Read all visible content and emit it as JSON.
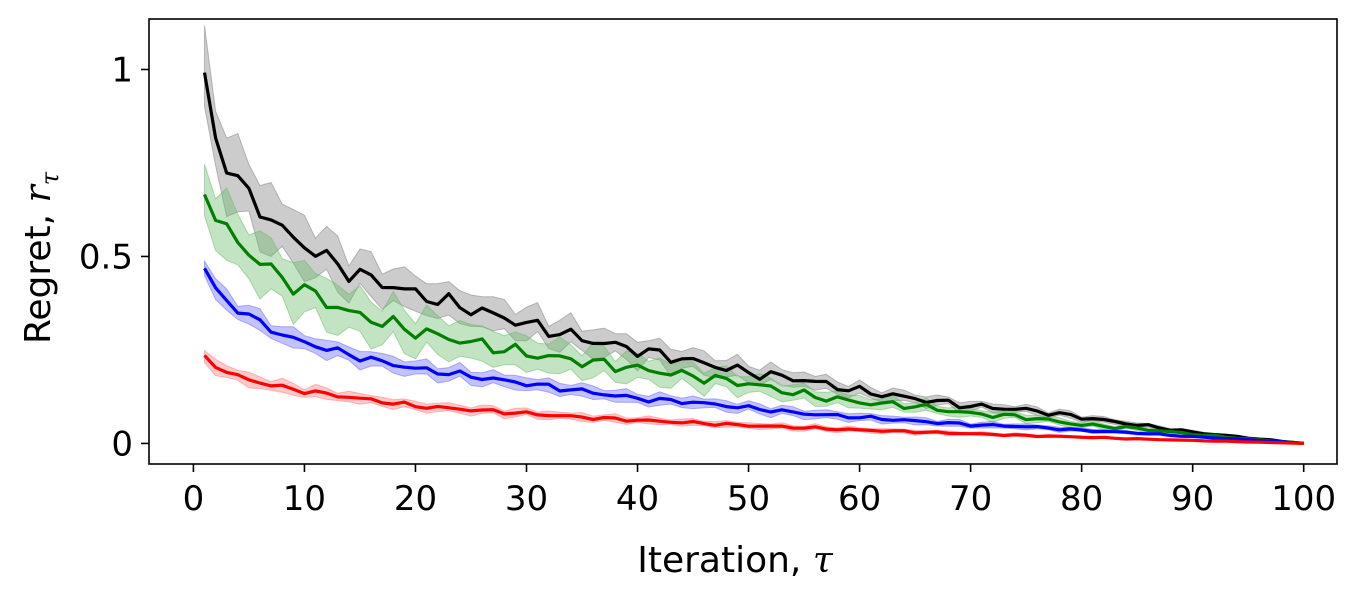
{
  "chart_data": {
    "type": "line",
    "xlabel_text": "Iteration, ",
    "xlabel_symbol": "τ",
    "ylabel_text": "Regret, ",
    "ylabel_symbol": "r",
    "ylabel_subscript": "τ",
    "xlim": [
      -4,
      103
    ],
    "ylim": [
      -0.055,
      1.135
    ],
    "x_ticks": [
      0,
      10,
      20,
      30,
      40,
      50,
      60,
      70,
      80,
      90,
      100
    ],
    "y_ticks": [
      0,
      0.5,
      1
    ],
    "y_tick_labels": [
      "0",
      "0.5",
      "1"
    ],
    "grid": false,
    "series": [
      {
        "color": "#000000",
        "band_color": "#808080",
        "band_halfwidth": [
          0.1,
          0.05,
          0.015,
          0.0
        ],
        "anchors": [
          [
            1,
            0.98
          ],
          [
            2,
            0.81
          ],
          [
            3,
            0.75
          ],
          [
            5,
            0.66
          ],
          [
            8,
            0.57
          ],
          [
            10,
            0.53
          ],
          [
            14,
            0.46
          ],
          [
            20,
            0.4
          ],
          [
            25,
            0.36
          ],
          [
            30,
            0.32
          ],
          [
            35,
            0.28
          ],
          [
            40,
            0.25
          ],
          [
            45,
            0.22
          ],
          [
            50,
            0.19
          ],
          [
            55,
            0.17
          ],
          [
            60,
            0.14
          ],
          [
            65,
            0.12
          ],
          [
            70,
            0.1
          ],
          [
            75,
            0.09
          ],
          [
            80,
            0.07
          ],
          [
            85,
            0.05
          ],
          [
            90,
            0.03
          ],
          [
            95,
            0.015
          ],
          [
            100,
            0.0
          ]
        ],
        "noise": 0.02
      },
      {
        "color": "#007f00",
        "band_color": "#66bb66",
        "band_halfwidth": [
          0.08,
          0.055,
          0.015,
          0.0
        ],
        "anchors": [
          [
            1,
            0.69
          ],
          [
            2,
            0.6
          ],
          [
            3,
            0.57
          ],
          [
            5,
            0.51
          ],
          [
            8,
            0.44
          ],
          [
            10,
            0.41
          ],
          [
            14,
            0.35
          ],
          [
            20,
            0.3
          ],
          [
            25,
            0.27
          ],
          [
            30,
            0.24
          ],
          [
            35,
            0.22
          ],
          [
            40,
            0.2
          ],
          [
            45,
            0.18
          ],
          [
            50,
            0.16
          ],
          [
            55,
            0.13
          ],
          [
            60,
            0.11
          ],
          [
            65,
            0.1
          ],
          [
            70,
            0.08
          ],
          [
            75,
            0.07
          ],
          [
            80,
            0.05
          ],
          [
            85,
            0.04
          ],
          [
            90,
            0.025
          ],
          [
            95,
            0.012
          ],
          [
            100,
            0.0
          ]
        ],
        "noise": 0.018
      },
      {
        "color": "#0000ff",
        "band_color": "#6666ff",
        "band_halfwidth": [
          0.025,
          0.02,
          0.01,
          0.0
        ],
        "anchors": [
          [
            1,
            0.47
          ],
          [
            2,
            0.41
          ],
          [
            3,
            0.38
          ],
          [
            5,
            0.34
          ],
          [
            8,
            0.29
          ],
          [
            10,
            0.27
          ],
          [
            15,
            0.23
          ],
          [
            20,
            0.2
          ],
          [
            25,
            0.18
          ],
          [
            30,
            0.16
          ],
          [
            35,
            0.14
          ],
          [
            40,
            0.12
          ],
          [
            45,
            0.11
          ],
          [
            50,
            0.095
          ],
          [
            55,
            0.08
          ],
          [
            60,
            0.07
          ],
          [
            65,
            0.06
          ],
          [
            70,
            0.05
          ],
          [
            75,
            0.045
          ],
          [
            80,
            0.035
          ],
          [
            85,
            0.028
          ],
          [
            90,
            0.018
          ],
          [
            95,
            0.01
          ],
          [
            100,
            0.0
          ]
        ],
        "noise": 0.008
      },
      {
        "color": "#ff0000",
        "band_color": "#ff7777",
        "band_halfwidth": [
          0.018,
          0.012,
          0.006,
          0.0
        ],
        "anchors": [
          [
            1,
            0.23
          ],
          [
            2,
            0.21
          ],
          [
            3,
            0.19
          ],
          [
            5,
            0.17
          ],
          [
            8,
            0.15
          ],
          [
            10,
            0.14
          ],
          [
            15,
            0.12
          ],
          [
            20,
            0.1
          ],
          [
            25,
            0.09
          ],
          [
            30,
            0.08
          ],
          [
            35,
            0.07
          ],
          [
            40,
            0.062
          ],
          [
            45,
            0.055
          ],
          [
            50,
            0.048
          ],
          [
            55,
            0.042
          ],
          [
            60,
            0.036
          ],
          [
            65,
            0.031
          ],
          [
            70,
            0.026
          ],
          [
            75,
            0.021
          ],
          [
            80,
            0.017
          ],
          [
            85,
            0.012
          ],
          [
            90,
            0.008
          ],
          [
            95,
            0.004
          ],
          [
            100,
            0.0
          ]
        ],
        "noise": 0.005
      }
    ]
  }
}
